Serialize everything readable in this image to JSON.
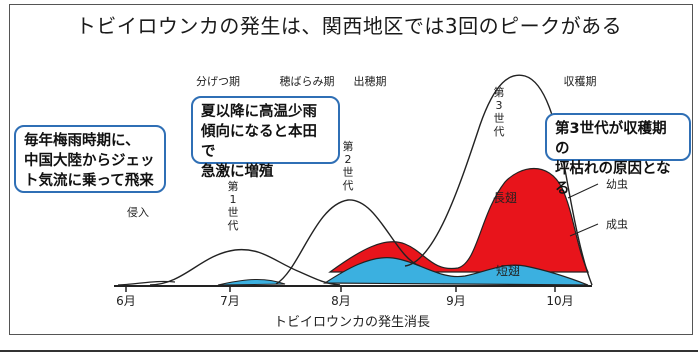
{
  "title": "トビイロウンカの発生は、関西地区では3回のピークがある",
  "x_axis": {
    "label": "トビイロウンカの発生消長",
    "months": [
      "6月",
      "7月",
      "8月",
      "9月",
      "10月"
    ]
  },
  "stages": {
    "bunketsu": "分げつ期",
    "hobaramu": "穂ばらみ期",
    "shussui": "出穂期",
    "shukaku": "収穫期"
  },
  "labels": {
    "shinnyu": "侵入",
    "gen1": "第1世代",
    "gen2": "第2世代",
    "gen3": "第3世代",
    "choshi": "長翅",
    "tanshi": "短翅",
    "yochu": "幼虫",
    "seichu": "成虫"
  },
  "callouts": {
    "left": [
      "毎年梅雨時期に、",
      "中国大陸からジェッ",
      "ト気流に乗って飛来"
    ],
    "middle": [
      "夏以降に高温少雨",
      "傾向になると本田で",
      "急激に増殖"
    ],
    "right": [
      "第3世代が収穫期の",
      "坪枯れの原因となる"
    ]
  },
  "colors": {
    "choshi_fill": "#e8141b",
    "tanshi_fill": "#3bb0e0",
    "callout_border": "#2f6fb5"
  }
}
